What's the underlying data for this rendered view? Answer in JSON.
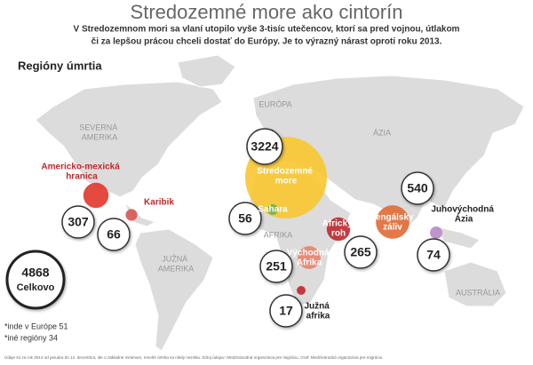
{
  "title": "Stredozemné more ako cintorín",
  "subtitle": [
    "V Stredozemnom mori sa vlaní utopilo vyše 3-tisíc utečencov, ktorí sa pred vojnou, útlakom",
    "či za lepšou prácou chceli dostať do Európy. Je to výrazný nárast oproti roku 2013."
  ],
  "legend_title": "Regióny úmrtia",
  "continents": [
    "SEVERNÁ AMERIKA",
    "EURÓPA",
    "ÁZIA",
    "AFRIKA",
    "JUŽNÁ AMERIKA",
    "AUSTRÁLIA"
  ],
  "regions": [
    {
      "name": "Stredozemné more",
      "value": 3224,
      "color": "#f8c630"
    },
    {
      "name": "Americko-mexická hranica",
      "value": 307,
      "color": "#e2362a"
    },
    {
      "name": "Karibik",
      "value": 66,
      "color": "#d9534f"
    },
    {
      "name": "Sahara",
      "value": 56,
      "color": "#72b04f"
    },
    {
      "name": "Východná Afrika",
      "value": 251,
      "color": "#e8836b"
    },
    {
      "name": "Africký roh",
      "value": 265,
      "color": "#c1272d"
    },
    {
      "name": "Južná afrika",
      "value": 17,
      "color": "#c1272d"
    },
    {
      "name": "Bengálsky záliv",
      "value": 540,
      "color": "#e06a35"
    },
    {
      "name": "Juhovýchodná Ázia",
      "value": 74,
      "color": "#b98aca"
    }
  ],
  "total": {
    "value": 4868,
    "label": "Celkovo"
  },
  "notes": [
    "*inde v Európe 51",
    "*iné regióny 34"
  ],
  "source": "Údaje sú za rok 2014 od januára do 12. decembra, ide o základné minimum, mnohé úmrtia sa nikdy nezistia. Zdroj údajov: Medzinárodná organizácia pre migráciu, Graf: Medzinárodná organizácia pre migráciu"
}
